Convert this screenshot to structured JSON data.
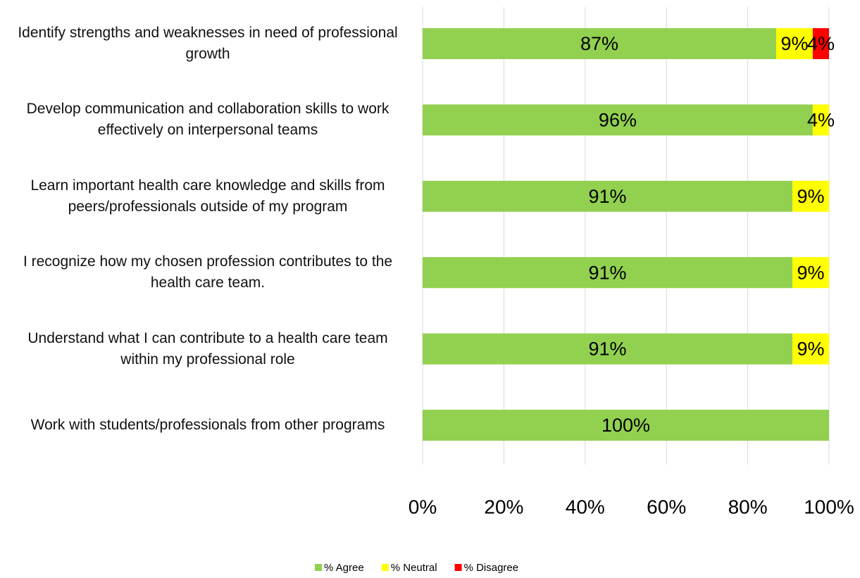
{
  "chart_data": {
    "type": "stacked_barh",
    "categories": [
      "Identify strengths and weaknesses in need of professional growth",
      "Develop communication and collaboration skills to work effectively on interpersonal teams",
      "Learn important health care knowledge and skills from peers/professionals outside of my program",
      "I recognize how my chosen profession contributes to the health care team.",
      "Understand what I can contribute to a health care team within my professional role",
      "Work with students/professionals from other programs"
    ],
    "series": [
      {
        "name": "% Agree",
        "color": "#92d050",
        "values": [
          87,
          96,
          91,
          91,
          91,
          100
        ],
        "value_labels": [
          "87%",
          "96%",
          "91%",
          "91%",
          "91%",
          "100%"
        ]
      },
      {
        "name": "% Neutral",
        "color": "#ffff00",
        "values": [
          9,
          4,
          9,
          9,
          9,
          0
        ],
        "value_labels": [
          "9%",
          "4%",
          "9%",
          "9%",
          "9%",
          null
        ]
      },
      {
        "name": "% Disagree",
        "color": "#ff0000",
        "values": [
          4,
          0,
          0,
          0,
          0,
          0
        ],
        "value_labels": [
          "4%",
          null,
          null,
          null,
          null,
          null
        ]
      }
    ],
    "xlim": [
      0,
      100
    ],
    "xticks": [
      {
        "value": 0,
        "label": "0%"
      },
      {
        "value": 20,
        "label": "20%"
      },
      {
        "value": 40,
        "label": "40%"
      },
      {
        "value": 60,
        "label": "60%"
      },
      {
        "value": 80,
        "label": "80%"
      },
      {
        "value": 100,
        "label": "100%"
      }
    ],
    "grid": true,
    "legend": "bottom"
  }
}
